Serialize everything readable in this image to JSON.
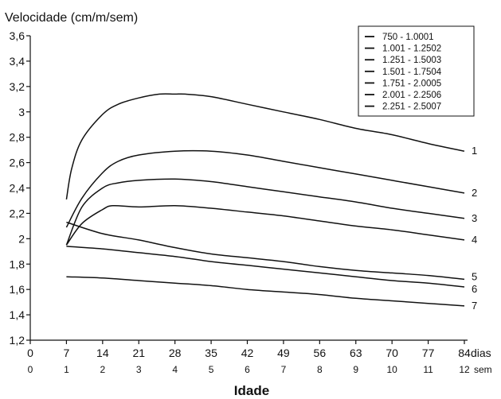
{
  "chart_data": {
    "type": "line",
    "ylabel": "Velocidade (cm/m/sem)",
    "xlabel": "Idade",
    "ylim": [
      1.2,
      3.6
    ],
    "xlim": [
      0,
      84
    ],
    "yticks": [
      "1,2",
      "1,4",
      "1,6",
      "1,8",
      "2",
      "2,2",
      "2,4",
      "2,6",
      "2,8",
      "3",
      "3,2",
      "3,4",
      "3,6"
    ],
    "xticks_days": [
      "0",
      "7",
      "14",
      "21",
      "28",
      "35",
      "42",
      "49",
      "56",
      "63",
      "70",
      "77",
      "84"
    ],
    "xticks_weeks": [
      "0",
      "1",
      "2",
      "3",
      "4",
      "5",
      "6",
      "7",
      "8",
      "9",
      "10",
      "11",
      "12"
    ],
    "x_unit_days": "dias",
    "x_unit_weeks": "sem",
    "legend_position": "top-right",
    "grid": false,
    "series": [
      {
        "name": "750 - 1.0001",
        "label": "7",
        "x": [
          7,
          14,
          21,
          28,
          35,
          42,
          49,
          56,
          63,
          70,
          77,
          84
        ],
        "values": [
          1.7,
          1.69,
          1.67,
          1.65,
          1.63,
          1.6,
          1.58,
          1.56,
          1.53,
          1.51,
          1.49,
          1.47
        ]
      },
      {
        "name": "1.001 - 1.2502",
        "label": "6",
        "x": [
          7,
          14,
          21,
          28,
          35,
          42,
          49,
          56,
          63,
          70,
          77,
          84
        ],
        "values": [
          1.94,
          1.92,
          1.89,
          1.86,
          1.82,
          1.79,
          1.76,
          1.73,
          1.7,
          1.67,
          1.65,
          1.62
        ]
      },
      {
        "name": "1.251 - 1.5003",
        "label": "5",
        "x": [
          7,
          14,
          21,
          28,
          35,
          42,
          49,
          56,
          63,
          70,
          77,
          84
        ],
        "values": [
          2.13,
          2.04,
          1.99,
          1.93,
          1.88,
          1.85,
          1.82,
          1.78,
          1.75,
          1.73,
          1.71,
          1.68
        ]
      },
      {
        "name": "1.501 - 1.7504",
        "label": "4",
        "x": [
          7,
          10,
          14,
          16,
          21,
          28,
          35,
          42,
          49,
          56,
          63,
          70,
          77,
          84
        ],
        "values": [
          1.95,
          2.12,
          2.23,
          2.26,
          2.25,
          2.26,
          2.24,
          2.21,
          2.18,
          2.14,
          2.1,
          2.07,
          2.03,
          1.99
        ]
      },
      {
        "name": "1.751 - 2.0005",
        "label": "3",
        "x": [
          7,
          10,
          14,
          17,
          21,
          28,
          35,
          42,
          49,
          56,
          63,
          70,
          77,
          84
        ],
        "values": [
          1.95,
          2.25,
          2.4,
          2.44,
          2.46,
          2.47,
          2.45,
          2.41,
          2.37,
          2.33,
          2.29,
          2.24,
          2.2,
          2.16
        ]
      },
      {
        "name": "2.001 - 2.2506",
        "label": "2",
        "x": [
          7,
          10,
          14,
          17,
          21,
          28,
          35,
          42,
          49,
          56,
          63,
          70,
          77,
          84
        ],
        "values": [
          2.09,
          2.32,
          2.52,
          2.61,
          2.66,
          2.69,
          2.69,
          2.66,
          2.61,
          2.56,
          2.51,
          2.46,
          2.41,
          2.36
        ]
      },
      {
        "name": "2.251 - 2.5007",
        "label": "1",
        "x": [
          7,
          8,
          10,
          14,
          17,
          21,
          25,
          28,
          30,
          35,
          42,
          49,
          56,
          63,
          70,
          77,
          84
        ],
        "values": [
          2.31,
          2.55,
          2.78,
          2.98,
          3.06,
          3.11,
          3.14,
          3.14,
          3.14,
          3.12,
          3.06,
          3.0,
          2.94,
          2.87,
          2.82,
          2.75,
          2.69
        ]
      }
    ]
  }
}
